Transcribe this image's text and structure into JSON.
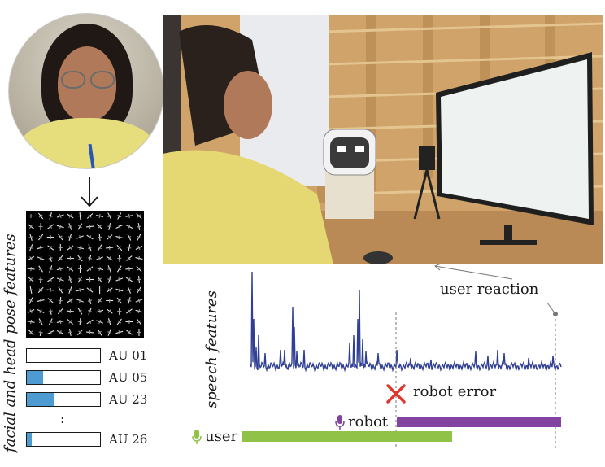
{
  "labels": {
    "user_reaction": "user reaction",
    "speech_features": "speech features",
    "facial_features": "facial and head pose features",
    "robot_error": "robot error",
    "robot": "robot",
    "user": "user",
    "au_dots": ":"
  },
  "action_units": [
    {
      "label": "AU 01",
      "value": 0.0
    },
    {
      "label": "AU 05",
      "value": 0.22
    },
    {
      "label": "AU 23",
      "value": 0.37
    },
    {
      "label": "AU 26",
      "value": 0.07
    }
  ],
  "colors": {
    "au_fill": "#4e9bd1",
    "speech_line": "#2f3f93",
    "robot_bar": "#8244a0",
    "user_bar": "#8fc247",
    "error_x": "#e2342b"
  }
}
